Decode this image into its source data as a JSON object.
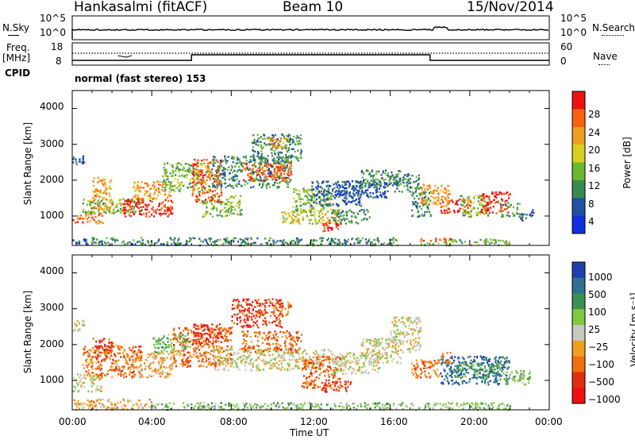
{
  "header": {
    "station": "Hankasalmi (fitACF)",
    "beam": "Beam 10",
    "date": "15/Nov/2014"
  },
  "status_panel": {
    "nsky_label": "N.Sky",
    "nsky_ticks": [
      "10^5",
      "10^0"
    ],
    "nsearch_label": "N.Search",
    "nsearch_ticks": [
      "10^5",
      "10^0"
    ],
    "freq_label_1": "Freq.",
    "freq_label_2": "[MHz]",
    "freq_ticks": [
      "18",
      "8"
    ],
    "nave_label": "Nave",
    "nave_ticks": [
      "60",
      "0"
    ],
    "cpid_label": "CPID",
    "cpid_text": "normal (fast stereo) 153"
  },
  "axes": {
    "ylabel": "Slant Range [km]",
    "xlabel": "Time UT",
    "yticks": [
      "4000",
      "3000",
      "2000",
      "1000"
    ],
    "xticks": [
      "00:00",
      "04:00",
      "08:00",
      "12:00",
      "16:00",
      "20:00",
      "00:00"
    ]
  },
  "power_scale": {
    "label": "Power [dB]",
    "ticks": [
      "28",
      "24",
      "20",
      "16",
      "12",
      "8",
      "4"
    ]
  },
  "velocity_scale": {
    "label": "Velocity  [m s⁻¹]",
    "ticks": [
      "1000",
      "500",
      "100",
      "25",
      "−25",
      "−100",
      "−500",
      "−1000"
    ]
  },
  "chart_data": {
    "type": "heatmap",
    "xlim_hours": [
      0,
      24
    ],
    "ylim_km": [
      180,
      4500
    ],
    "power_colors": [
      "#1030e0",
      "#2050a0",
      "#3a8a50",
      "#6ab830",
      "#d8d020",
      "#f0a020",
      "#ff6010",
      "#ee1010"
    ],
    "velocity_colors": [
      "#2040b0",
      "#307090",
      "#3a9050",
      "#80c840",
      "#c8c8c0",
      "#f0a020",
      "#f07010",
      "#e03010",
      "#ee1010"
    ],
    "power_regions": [
      {
        "t": [
          0.0,
          0.8
        ],
        "r": [
          200,
          400
        ],
        "lvl": 1
      },
      {
        "t": [
          0.8,
          16.5
        ],
        "r": [
          200,
          420
        ],
        "lvl": 2
      },
      {
        "t": [
          17.5,
          22.0
        ],
        "r": [
          200,
          380
        ],
        "lvl": 3
      },
      {
        "t": [
          0.0,
          0.6
        ],
        "r": [
          2400,
          2700
        ],
        "lvl": 1
      },
      {
        "t": [
          0.0,
          1.5
        ],
        "r": [
          800,
          1100
        ],
        "lvl": 6
      },
      {
        "t": [
          0.5,
          3.5
        ],
        "r": [
          1100,
          1500
        ],
        "lvl": 3
      },
      {
        "t": [
          1.0,
          2.0
        ],
        "r": [
          1200,
          2100
        ],
        "lvl": 5
      },
      {
        "t": [
          2.5,
          5.0
        ],
        "r": [
          1000,
          1500
        ],
        "lvl": 7
      },
      {
        "t": [
          3.0,
          5.0
        ],
        "r": [
          1500,
          2000
        ],
        "lvl": 5
      },
      {
        "t": [
          4.5,
          7.0
        ],
        "r": [
          1700,
          2500
        ],
        "lvl": 3
      },
      {
        "t": [
          6.5,
          8.5
        ],
        "r": [
          1000,
          1600
        ],
        "lvl": 3
      },
      {
        "t": [
          6.0,
          7.5
        ],
        "r": [
          1400,
          2600
        ],
        "lvl": 6
      },
      {
        "t": [
          7.0,
          11.0
        ],
        "r": [
          1800,
          2700
        ],
        "lvl": 2
      },
      {
        "t": [
          8.5,
          11.0
        ],
        "r": [
          2000,
          2500
        ],
        "lvl": 6
      },
      {
        "t": [
          9.0,
          11.5
        ],
        "r": [
          2500,
          3300
        ],
        "lvl": 2
      },
      {
        "t": [
          9.8,
          10.8
        ],
        "r": [
          2900,
          3200
        ],
        "lvl": 5
      },
      {
        "t": [
          10.5,
          13.5
        ],
        "r": [
          800,
          1200
        ],
        "lvl": 4
      },
      {
        "t": [
          11.0,
          13.0
        ],
        "r": [
          1100,
          1800
        ],
        "lvl": 3
      },
      {
        "t": [
          12.5,
          13.5
        ],
        "r": [
          600,
          900
        ],
        "lvl": 7
      },
      {
        "t": [
          13.0,
          15.0
        ],
        "r": [
          800,
          1200
        ],
        "lvl": 2
      },
      {
        "t": [
          12.0,
          14.5
        ],
        "r": [
          1300,
          2000
        ],
        "lvl": 1
      },
      {
        "t": [
          13.5,
          16.0
        ],
        "r": [
          1500,
          2000
        ],
        "lvl": 1
      },
      {
        "t": [
          14.5,
          16.5
        ],
        "r": [
          1800,
          2300
        ],
        "lvl": 2
      },
      {
        "t": [
          16.0,
          17.5
        ],
        "r": [
          1700,
          2200
        ],
        "lvl": 2
      },
      {
        "t": [
          17.0,
          18.0
        ],
        "r": [
          1000,
          1700
        ],
        "lvl": 2
      },
      {
        "t": [
          17.5,
          19.0
        ],
        "r": [
          1300,
          1900
        ],
        "lvl": 5
      },
      {
        "t": [
          18.5,
          20.0
        ],
        "r": [
          1100,
          1500
        ],
        "lvl": 7
      },
      {
        "t": [
          19.5,
          21.0
        ],
        "r": [
          1000,
          1600
        ],
        "lvl": 3
      },
      {
        "t": [
          20.5,
          22.0
        ],
        "r": [
          1100,
          1700
        ],
        "lvl": 7
      },
      {
        "t": [
          21.5,
          22.5
        ],
        "r": [
          1000,
          1400
        ],
        "lvl": 2
      },
      {
        "t": [
          22.5,
          23.2
        ],
        "r": [
          900,
          1200
        ],
        "lvl": 1
      },
      {
        "t": [
          17.5,
          19.0
        ],
        "r": [
          300,
          400
        ],
        "lvl": 7
      }
    ],
    "velocity_regions": [
      {
        "t": [
          0.0,
          0.6
        ],
        "r": [
          2400,
          2700
        ],
        "lvl": 4
      },
      {
        "t": [
          0.0,
          4.0
        ],
        "r": [
          200,
          500
        ],
        "lvl": 5
      },
      {
        "t": [
          4.0,
          22.0
        ],
        "r": [
          200,
          400
        ],
        "lvl": 3
      },
      {
        "t": [
          0.0,
          1.5
        ],
        "r": [
          700,
          1200
        ],
        "lvl": 4
      },
      {
        "t": [
          0.5,
          3.5
        ],
        "r": [
          1100,
          2000
        ],
        "lvl": 6
      },
      {
        "t": [
          1.0,
          2.0
        ],
        "r": [
          1600,
          2200
        ],
        "lvl": 7
      },
      {
        "t": [
          3.0,
          5.0
        ],
        "r": [
          1100,
          1800
        ],
        "lvl": 5
      },
      {
        "t": [
          5.0,
          8.0
        ],
        "r": [
          1400,
          2500
        ],
        "lvl": 6
      },
      {
        "t": [
          6.0,
          7.5
        ],
        "r": [
          2000,
          2600
        ],
        "lvl": 7
      },
      {
        "t": [
          4.0,
          6.0
        ],
        "r": [
          1800,
          2300
        ],
        "lvl": 3
      },
      {
        "t": [
          8.0,
          10.5
        ],
        "r": [
          2500,
          3300
        ],
        "lvl": 7
      },
      {
        "t": [
          10.0,
          11.0
        ],
        "r": [
          2800,
          3200
        ],
        "lvl": 6
      },
      {
        "t": [
          7.0,
          13.0
        ],
        "r": [
          1300,
          1900
        ],
        "lvl": 4
      },
      {
        "t": [
          8.5,
          11.5
        ],
        "r": [
          1800,
          2400
        ],
        "lvl": 6
      },
      {
        "t": [
          11.5,
          13.5
        ],
        "r": [
          800,
          1700
        ],
        "lvl": 6
      },
      {
        "t": [
          12.5,
          14.0
        ],
        "r": [
          700,
          1000
        ],
        "lvl": 7
      },
      {
        "t": [
          13.0,
          15.5
        ],
        "r": [
          1200,
          1800
        ],
        "lvl": 4
      },
      {
        "t": [
          14.5,
          16.5
        ],
        "r": [
          1500,
          2200
        ],
        "lvl": 4
      },
      {
        "t": [
          16.0,
          17.5
        ],
        "r": [
          1800,
          2800
        ],
        "lvl": 4
      },
      {
        "t": [
          17.0,
          18.5
        ],
        "r": [
          1100,
          1600
        ],
        "lvl": 6
      },
      {
        "t": [
          18.5,
          22.0
        ],
        "r": [
          900,
          1700
        ],
        "lvl": 1
      },
      {
        "t": [
          19.0,
          21.5
        ],
        "r": [
          1100,
          1500
        ],
        "lvl": 2
      },
      {
        "t": [
          21.5,
          23.0
        ],
        "r": [
          900,
          1300
        ],
        "lvl": 3
      },
      {
        "t": [
          18.5,
          19.0
        ],
        "r": [
          1500,
          1800
        ],
        "lvl": 6
      }
    ],
    "freq_step": {
      "t": [
        6.0,
        18.0
      ],
      "level": "high"
    }
  }
}
